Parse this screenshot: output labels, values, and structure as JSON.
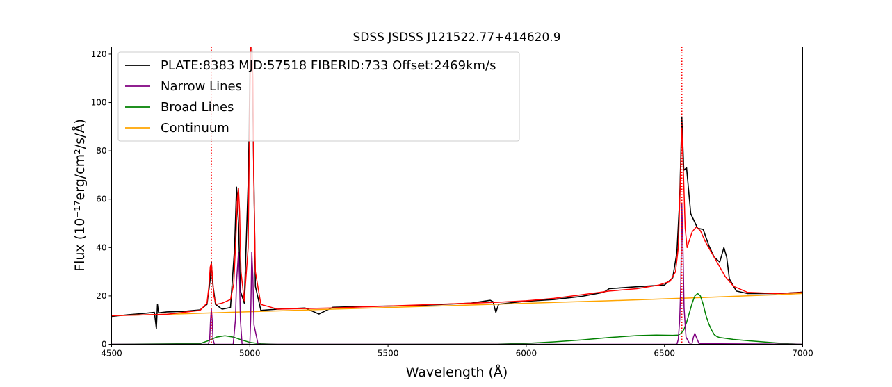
{
  "chart_data": {
    "type": "line",
    "title": "SDSS JSDSS J121522.77+414620.9",
    "xlabel": "Wavelength (Å)",
    "ylabel": "Flux (10⁻¹⁷erg/cm²/s/Å)",
    "xlim": [
      4500,
      7000
    ],
    "ylim": [
      0,
      123
    ],
    "xticks": [
      4500,
      5000,
      5500,
      6000,
      6500,
      7000
    ],
    "yticks": [
      0,
      20,
      40,
      60,
      80,
      100,
      120
    ],
    "grid": false,
    "legend_position": "top-left",
    "vertical_markers": [
      4861,
      6563
    ],
    "series": [
      {
        "name": "PLATE:8383 MJD:57518 FIBERID:733 Offset:2469km/s",
        "color": "#000000",
        "x": [
          4500,
          4560,
          4620,
          4655,
          4662,
          4666,
          4670,
          4700,
          4760,
          4820,
          4845,
          4856,
          4861,
          4866,
          4876,
          4900,
          4930,
          4945,
          4952,
          4959,
          4966,
          4980,
          4995,
          5002,
          5007,
          5012,
          5020,
          5040,
          5100,
          5200,
          5250,
          5300,
          5400,
          5500,
          5600,
          5700,
          5800,
          5870,
          5880,
          5890,
          5900,
          5950,
          6000,
          6100,
          6200,
          6280,
          6300,
          6400,
          6500,
          6530,
          6545,
          6555,
          6563,
          6570,
          6580,
          6595,
          6620,
          6640,
          6660,
          6680,
          6700,
          6715,
          6725,
          6735,
          6760,
          6800,
          6900,
          6950,
          6990,
          7000
        ],
        "y": [
          11.5,
          12.2,
          12.8,
          13.2,
          6.5,
          16.5,
          13.0,
          13.4,
          13.6,
          14.2,
          16.5,
          26,
          34,
          25,
          16.5,
          14.5,
          15.2,
          40,
          65,
          50,
          22,
          17,
          70,
          124,
          124,
          90,
          24,
          14.0,
          14.5,
          15.0,
          12.5,
          15.3,
          15.6,
          15.8,
          16.0,
          16.5,
          17.0,
          18.2,
          17.6,
          13.2,
          16.5,
          17.2,
          17.8,
          18.5,
          19.8,
          21.5,
          23.0,
          23.8,
          24.5,
          27.5,
          38,
          60,
          94,
          72,
          73,
          54,
          48,
          47.5,
          41,
          36,
          34,
          40,
          36,
          27,
          22,
          21.0,
          21.0,
          21.2,
          21.5,
          21.6
        ]
      },
      {
        "name": "Narrow Lines",
        "color": "#800080",
        "x": [
          4500,
          4850,
          4855,
          4858,
          4861,
          4864,
          4867,
          4872,
          4940,
          4948,
          4952,
          4959,
          4963,
          4966,
          4972,
          5000,
          5003,
          5007,
          5011,
          5015,
          5030,
          6530,
          6545,
          6550,
          6555,
          6559,
          6563,
          6567,
          6571,
          6578,
          6590,
          6600,
          6605,
          6610,
          6615,
          6625,
          7000
        ],
        "y": [
          0,
          0,
          2,
          10,
          14.5,
          10,
          2,
          0,
          0,
          10,
          26,
          38,
          26,
          10,
          0,
          0,
          10,
          38,
          28,
          8,
          0,
          0,
          0,
          2,
          10,
          25,
          58,
          40,
          15,
          3,
          0.5,
          0.5,
          3,
          4.5,
          3,
          0.3,
          0
        ]
      },
      {
        "name": "Broad Lines",
        "color": "#008000",
        "x": [
          4500,
          4820,
          4850,
          4880,
          4910,
          4940,
          4970,
          5000,
          5040,
          5100,
          5500,
          5900,
          6000,
          6100,
          6200,
          6300,
          6400,
          6470,
          6530,
          6550,
          6560,
          6570,
          6580,
          6590,
          6600,
          6610,
          6620,
          6630,
          6640,
          6650,
          6660,
          6670,
          6680,
          6690,
          6700,
          6750,
          6800,
          6900,
          6950,
          7000
        ],
        "y": [
          0,
          0.3,
          1.5,
          3.0,
          3.5,
          3.0,
          1.8,
          0.8,
          0.2,
          0,
          0,
          0.1,
          0.4,
          1.0,
          1.8,
          2.8,
          3.6,
          3.8,
          3.7,
          3.8,
          4.5,
          6.0,
          9.0,
          13.0,
          17.0,
          20.0,
          21.0,
          20.0,
          16.5,
          12.0,
          8.5,
          6.0,
          4.0,
          3.2,
          2.8,
          2.0,
          1.5,
          0.6,
          0.2,
          0
        ]
      },
      {
        "name": "Continuum",
        "color": "#FFA500",
        "x": [
          4500,
          4700,
          4900,
          5100,
          5300,
          5500,
          5700,
          5900,
          6100,
          6300,
          6500,
          6700,
          6900,
          7000
        ],
        "y": [
          11.8,
          12.4,
          13.1,
          13.8,
          14.5,
          15.2,
          15.9,
          16.6,
          17.3,
          18.0,
          18.8,
          19.6,
          20.5,
          21.0
        ]
      },
      {
        "name": "",
        "color": "#FF0000",
        "x": [
          4500,
          4700,
          4820,
          4845,
          4852,
          4857,
          4861,
          4865,
          4870,
          4878,
          4900,
          4930,
          4942,
          4950,
          4955,
          4959,
          4963,
          4968,
          4980,
          4994,
          5000,
          5003,
          5007,
          5011,
          5014,
          5020,
          5040,
          5100,
          5300,
          5500,
          5700,
          5900,
          6000,
          6100,
          6200,
          6300,
          6400,
          6480,
          6520,
          6540,
          6550,
          6556,
          6563,
          6569,
          6575,
          6582,
          6590,
          6600,
          6615,
          6630,
          6650,
          6680,
          6700,
          6720,
          6750,
          6800,
          6900,
          7000
        ],
        "y": [
          11.8,
          12.4,
          14.0,
          17.0,
          24.0,
          32.0,
          33.5,
          28.0,
          20.0,
          16.5,
          17.0,
          18.5,
          25.0,
          45.0,
          60.0,
          64.5,
          55.0,
          30.0,
          18.0,
          40.0,
          100,
          124,
          124,
          110,
          70,
          30,
          16.5,
          14.5,
          15.0,
          15.8,
          16.6,
          17.4,
          18.0,
          19.0,
          20.5,
          22.0,
          23.0,
          24.5,
          26.0,
          30.0,
          40.0,
          62.0,
          89.0,
          70.0,
          48.0,
          40.0,
          43.0,
          46.5,
          48.5,
          47.0,
          42.0,
          36.0,
          32.0,
          28.0,
          24.0,
          21.5,
          21.0,
          21.4
        ]
      }
    ]
  }
}
